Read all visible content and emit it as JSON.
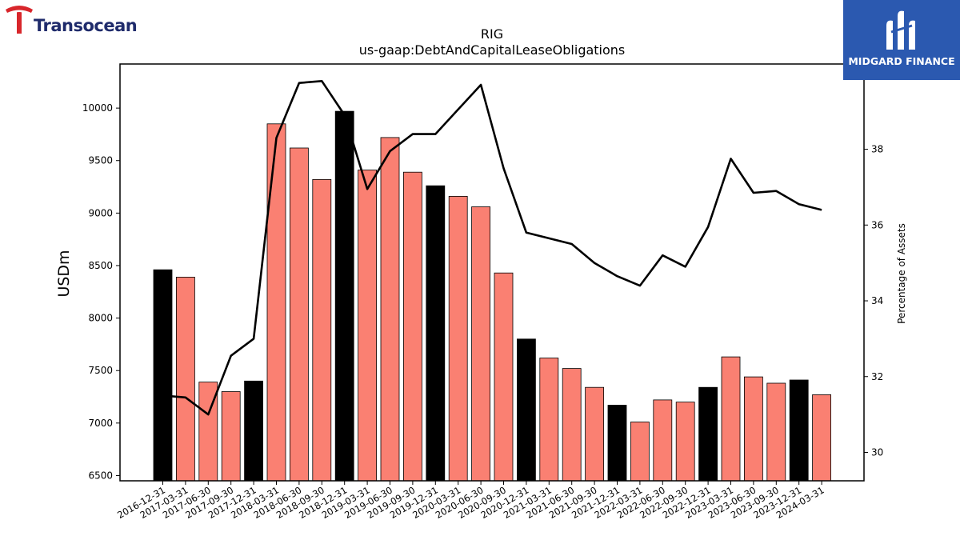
{
  "header": {
    "left_logo_text": "Transocean",
    "right_logo_text": "MIDGARD FINANCE"
  },
  "chart_data": {
    "type": "bar+line",
    "title": "RIG",
    "subtitle": "us-gaap:DebtAndCapitalLeaseObligations",
    "ylabel": "USDm",
    "y2label": "Percentage of Assets",
    "ylim": [
      6450,
      10420
    ],
    "y2lim": [
      29.25,
      40.25
    ],
    "yticks": [
      6500,
      7000,
      7500,
      8000,
      8500,
      9000,
      9500,
      10000
    ],
    "y2ticks": [
      30,
      32,
      34,
      36,
      38
    ],
    "categories": [
      "2016-12-31",
      "2017-03-31",
      "2017-06-30",
      "2017-09-30",
      "2017-12-31",
      "2018-03-31",
      "2018-06-30",
      "2018-09-30",
      "2018-12-31",
      "2019-03-31",
      "2019-06-30",
      "2019-09-30",
      "2019-12-31",
      "2020-03-31",
      "2020-06-30",
      "2020-09-30",
      "2020-12-31",
      "2021-03-31",
      "2021-06-30",
      "2021-09-30",
      "2021-12-31",
      "2022-03-31",
      "2022-06-30",
      "2022-09-30",
      "2022-12-31",
      "2023-03-31",
      "2023-06-30",
      "2023-09-30",
      "2023-12-31",
      "2024-03-31"
    ],
    "series": [
      {
        "kind": "bar",
        "values": [
          8460,
          8390,
          7390,
          7300,
          7400,
          9850,
          9620,
          9320,
          9970,
          9410,
          9720,
          9390,
          9260,
          9160,
          9060,
          8430,
          7800,
          7620,
          7520,
          7340,
          7170,
          7010,
          7220,
          7200,
          7340,
          7630,
          7440,
          7380,
          7410,
          7270
        ]
      },
      {
        "kind": "line",
        "axis": "right",
        "values": [
          31.5,
          31.45,
          31.0,
          32.55,
          33.0,
          38.3,
          39.75,
          39.8,
          38.9,
          36.95,
          37.95,
          38.4,
          38.4,
          39.05,
          39.7,
          37.5,
          35.8,
          35.65,
          35.5,
          35.0,
          34.65,
          34.4,
          35.2,
          34.9,
          35.95,
          37.75,
          36.85,
          36.9,
          36.55,
          36.4
        ]
      }
    ],
    "colors": {
      "bar_year_end": "#000000",
      "bar_quarter": "#fa8072",
      "line": "#000000"
    },
    "grid": false,
    "legend": "none"
  }
}
